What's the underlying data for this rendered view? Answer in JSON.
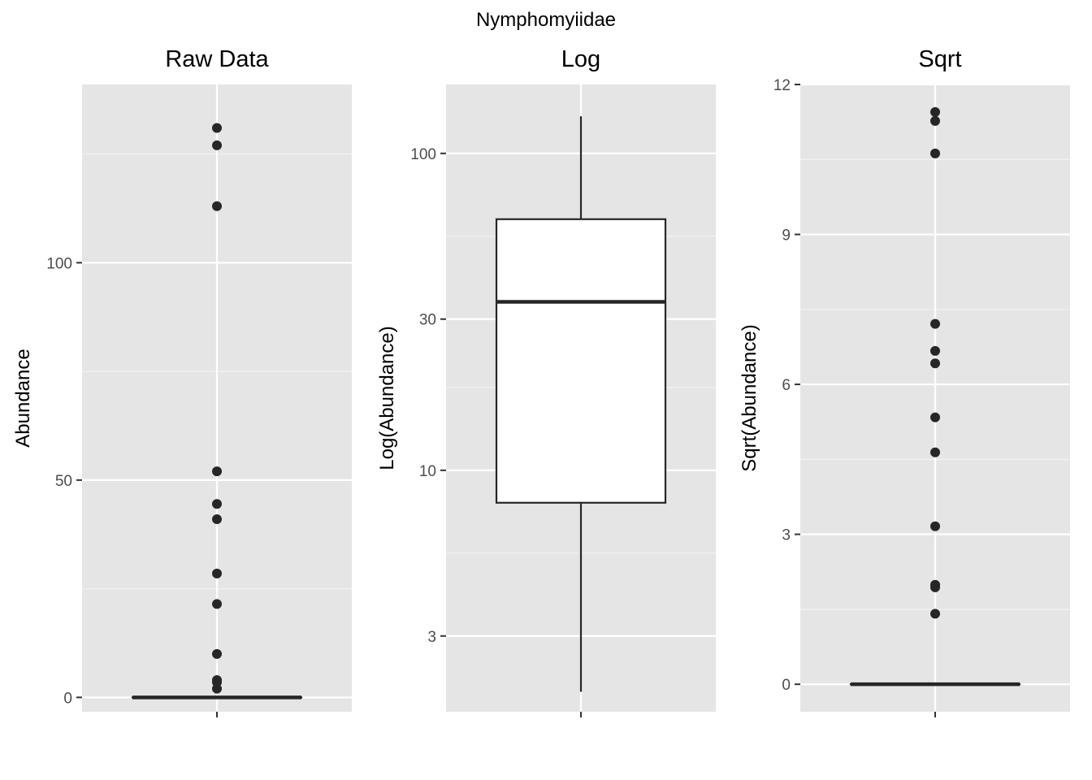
{
  "figure_title": "Nymphomyiidae",
  "colors": {
    "panel_bg": "#e5e5e5",
    "grid_major": "#ffffff",
    "grid_minor": "#f2f2f2",
    "ink": "#262626",
    "tick": "#333333",
    "box_fill": "#ffffff"
  },
  "chart_data": [
    {
      "type": "boxplot",
      "title": "Raw Data",
      "xlabel": "",
      "ylabel": "Abundance",
      "y_scale": "linear",
      "ylim": [
        -3.3,
        141
      ],
      "y_ticks": [
        0,
        50,
        100
      ],
      "y_tick_labels": [
        "0",
        "50",
        "100"
      ],
      "grid": true,
      "box": {
        "min": 0,
        "q1": 0,
        "median": 0,
        "q3": 0,
        "max": 0
      },
      "outliers": [
        131,
        127,
        113,
        52,
        44.5,
        41,
        28.5,
        21.5,
        10,
        4,
        3.5,
        2
      ]
    },
    {
      "type": "boxplot",
      "title": "Log",
      "xlabel": "",
      "ylabel": "Log(Abundance)",
      "y_scale": "log10",
      "ylim": [
        1.73,
        165
      ],
      "y_ticks": [
        3,
        10,
        30,
        100
      ],
      "y_tick_labels": [
        "3",
        "10",
        "30",
        "100"
      ],
      "grid": true,
      "box": {
        "min": 2,
        "q1": 7.9,
        "median": 34,
        "q3": 62,
        "max": 131
      },
      "outliers": []
    },
    {
      "type": "boxplot",
      "title": "Sqrt",
      "xlabel": "",
      "ylabel": "Sqrt(Abundance)",
      "y_scale": "linear",
      "ylim": [
        -0.55,
        12
      ],
      "y_ticks": [
        0,
        3,
        6,
        9,
        12
      ],
      "y_tick_labels": [
        "0",
        "3",
        "6",
        "9",
        "12"
      ],
      "grid": true,
      "box": {
        "min": 0,
        "q1": 0,
        "median": 0,
        "q3": 0,
        "max": 0
      },
      "outliers": [
        11.45,
        11.27,
        10.62,
        7.21,
        6.67,
        6.42,
        5.34,
        4.64,
        3.16,
        1.99,
        1.94,
        1.41
      ]
    }
  ]
}
